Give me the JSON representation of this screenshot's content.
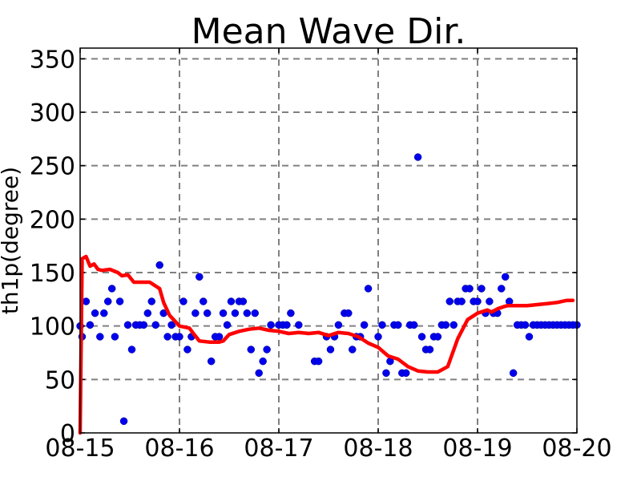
{
  "chart_data": {
    "type": "scatter",
    "title": "Mean Wave Dir.",
    "xlabel": "",
    "ylabel": "th1p(degree)",
    "xlim": [
      0,
      5
    ],
    "ylim": [
      0,
      360
    ],
    "x_tick_values": [
      0,
      1,
      2,
      3,
      4,
      5
    ],
    "x_tick_labels": [
      "08-15",
      "08-16",
      "08-17",
      "08-18",
      "08-19",
      "08-20"
    ],
    "y_tick_values": [
      0,
      50,
      100,
      150,
      200,
      250,
      300,
      350
    ],
    "y_tick_labels": [
      "0",
      "50",
      "100",
      "150",
      "200",
      "250",
      "300",
      "350"
    ],
    "grid": true,
    "legend": "none",
    "colors": {
      "points": "#0000ee",
      "line": "#ff0000",
      "grid": "#808080"
    },
    "series": [
      {
        "kind": "scatter",
        "x": [
          0.0,
          0.02,
          0.06,
          0.1,
          0.15,
          0.2,
          0.24,
          0.28,
          0.32,
          0.35,
          0.4,
          0.44,
          0.48,
          0.52,
          0.56,
          0.6,
          0.64,
          0.68,
          0.72,
          0.76,
          0.8,
          0.84,
          0.88,
          0.92,
          0.96,
          1.0,
          1.04,
          1.08,
          1.12,
          1.16,
          1.2,
          1.24,
          1.28,
          1.32,
          1.36,
          1.4,
          1.44,
          1.48,
          1.52,
          1.56,
          1.6,
          1.64,
          1.68,
          1.72,
          1.76,
          1.8,
          1.84,
          1.88,
          1.92,
          2.0,
          2.04,
          2.08,
          2.12,
          2.2,
          2.36,
          2.4,
          2.48,
          2.52,
          2.56,
          2.6,
          2.66,
          2.7,
          2.74,
          2.78,
          2.82,
          2.86,
          2.9,
          3.0,
          3.04,
          3.08,
          3.12,
          3.16,
          3.2,
          3.24,
          3.28,
          3.32,
          3.36,
          3.4,
          3.44,
          3.48,
          3.52,
          3.56,
          3.6,
          3.64,
          3.68,
          3.72,
          3.76,
          3.8,
          3.84,
          3.88,
          3.92,
          3.96,
          4.0,
          4.04,
          4.08,
          4.12,
          4.16,
          4.2,
          4.24,
          4.28,
          4.32,
          4.36,
          4.4,
          4.44,
          4.48,
          4.52,
          4.56,
          4.6,
          4.64,
          4.68,
          4.72,
          4.76,
          4.8,
          4.84,
          4.88,
          4.92,
          4.96,
          5.0
        ],
        "y": [
          100,
          90,
          123,
          101,
          112,
          90,
          112,
          123,
          135,
          90,
          123,
          11,
          101,
          78,
          101,
          101,
          101,
          112,
          123,
          101,
          157,
          112,
          90,
          101,
          90,
          90,
          123,
          78,
          90,
          112,
          146,
          123,
          112,
          67,
          90,
          90,
          112,
          101,
          123,
          112,
          123,
          123,
          112,
          78,
          112,
          56,
          67,
          78,
          101,
          101,
          101,
          101,
          112,
          101,
          67,
          67,
          90,
          78,
          90,
          101,
          112,
          112,
          78,
          90,
          90,
          101,
          135,
          90,
          101,
          56,
          67,
          101,
          101,
          56,
          56,
          101,
          101,
          258,
          90,
          78,
          78,
          90,
          90,
          101,
          101,
          123,
          101,
          123,
          123,
          135,
          135,
          123,
          123,
          135,
          112,
          123,
          112,
          112,
          135,
          146,
          123,
          56,
          101,
          101,
          101,
          90,
          101,
          101,
          101,
          101,
          101,
          101,
          101,
          101,
          101,
          101,
          101,
          101
        ]
      },
      {
        "kind": "line",
        "x": [
          0.0,
          0.02,
          0.06,
          0.1,
          0.14,
          0.18,
          0.22,
          0.3,
          0.38,
          0.42,
          0.48,
          0.54,
          0.6,
          0.7,
          0.8,
          0.84,
          0.9,
          1.0,
          1.1,
          1.14,
          1.2,
          1.3,
          1.4,
          1.44,
          1.5,
          1.6,
          1.7,
          1.8,
          1.9,
          2.0,
          2.1,
          2.2,
          2.3,
          2.4,
          2.5,
          2.6,
          2.7,
          2.8,
          2.9,
          3.0,
          3.1,
          3.2,
          3.3,
          3.4,
          3.5,
          3.6,
          3.7,
          3.8,
          3.9,
          4.0,
          4.1,
          4.14,
          4.2,
          4.26,
          4.3,
          4.4,
          4.5,
          4.6,
          4.7,
          4.8,
          4.9,
          4.96
        ],
        "y": [
          0,
          163,
          165,
          156,
          158,
          153,
          152,
          153,
          150,
          147,
          148,
          141,
          141,
          141,
          135,
          122,
          110,
          100,
          98,
          93,
          86,
          85,
          85,
          86,
          92,
          95,
          97,
          98,
          96,
          95,
          93,
          94,
          93,
          94,
          91,
          94,
          93,
          90,
          84,
          80,
          72,
          69,
          62,
          58,
          57,
          57,
          62,
          88,
          106,
          112,
          115,
          113,
          116,
          118,
          119,
          119,
          119,
          120,
          121,
          122,
          124,
          124
        ]
      }
    ]
  }
}
